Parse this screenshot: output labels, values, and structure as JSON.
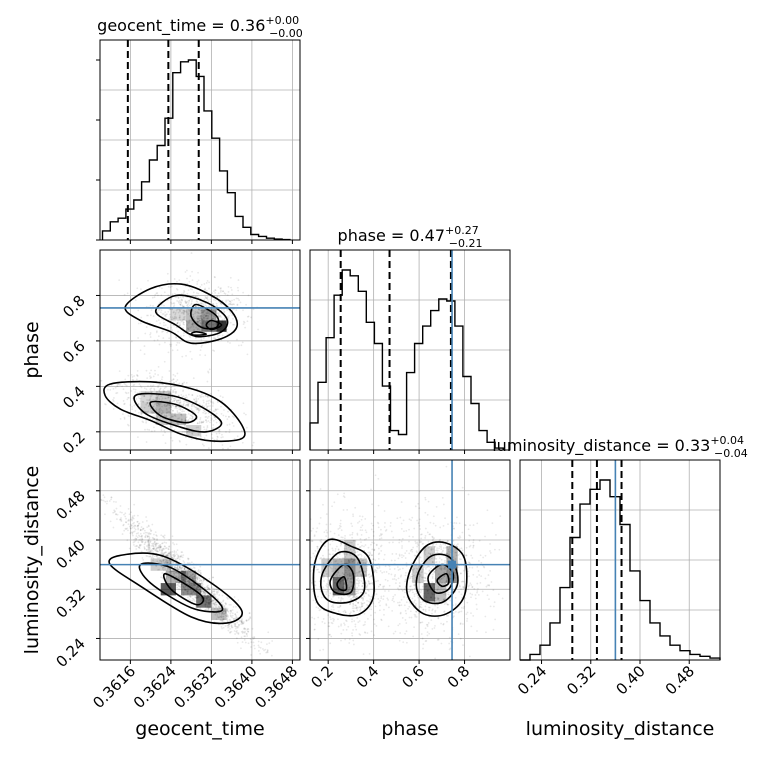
{
  "chart_data": {
    "type": "corner",
    "parameters": [
      "geocent_time",
      "phase",
      "luminosity_distance"
    ],
    "titles": [
      {
        "param": "geocent_time",
        "text": "geocent_time = 0.36",
        "plus": "+0.00",
        "minus": "−0.00"
      },
      {
        "param": "phase",
        "text": "phase = 0.47",
        "plus": "+0.27",
        "minus": "−0.21"
      },
      {
        "param": "luminosity_distance",
        "text": "luminosity_distance = 0.33",
        "plus": "+0.04",
        "minus": "−0.04"
      }
    ],
    "ranges": {
      "geocent_time": [
        0.361,
        0.36495
      ],
      "phase": [
        0.12,
        1.0
      ],
      "luminosity_distance": [
        0.205,
        0.53
      ]
    },
    "ticks": {
      "geocent_time": [
        "0.3616",
        "0.3624",
        "0.3632",
        "0.3640",
        "0.3648"
      ],
      "phase": [
        "0.2",
        "0.4",
        "0.6",
        "0.8"
      ],
      "luminosity_distance": [
        "0.24",
        "0.32",
        "0.40",
        "0.48"
      ]
    },
    "truths": {
      "geocent_time": null,
      "phase": 0.745,
      "luminosity_distance": 0.36
    },
    "quantiles": {
      "geocent_time": [
        0.36155,
        0.36235,
        0.36295
      ],
      "phase": [
        0.255,
        0.47,
        0.74
      ],
      "luminosity_distance": [
        0.29,
        0.33,
        0.37
      ]
    },
    "histograms": {
      "geocent_time": {
        "edges_range": [
          0.36105,
          0.36475
        ],
        "counts": [
          0.05,
          0.1,
          0.12,
          0.17,
          0.22,
          0.32,
          0.44,
          0.52,
          0.67,
          0.92,
          0.98,
          0.99,
          0.9,
          0.71,
          0.56,
          0.38,
          0.26,
          0.13,
          0.07,
          0.03,
          0.02,
          0.01,
          0.005,
          0.002
        ]
      },
      "phase": {
        "edges_range": [
          0.12,
          0.97
        ],
        "counts": [
          0.14,
          0.35,
          0.58,
          0.8,
          0.93,
          0.9,
          0.82,
          0.66,
          0.55,
          0.33,
          0.1,
          0.08,
          0.4,
          0.55,
          0.64,
          0.72,
          0.78,
          0.77,
          0.64,
          0.38,
          0.24,
          0.1,
          0.04,
          0.01
        ]
      },
      "luminosity_distance": {
        "edges_range": [
          0.205,
          0.53
        ],
        "counts": [
          0.0,
          0.03,
          0.08,
          0.2,
          0.39,
          0.66,
          0.84,
          0.92,
          0.97,
          0.88,
          0.73,
          0.48,
          0.32,
          0.2,
          0.13,
          0.08,
          0.05,
          0.03,
          0.02,
          0.01
        ]
      }
    },
    "grid": true
  }
}
